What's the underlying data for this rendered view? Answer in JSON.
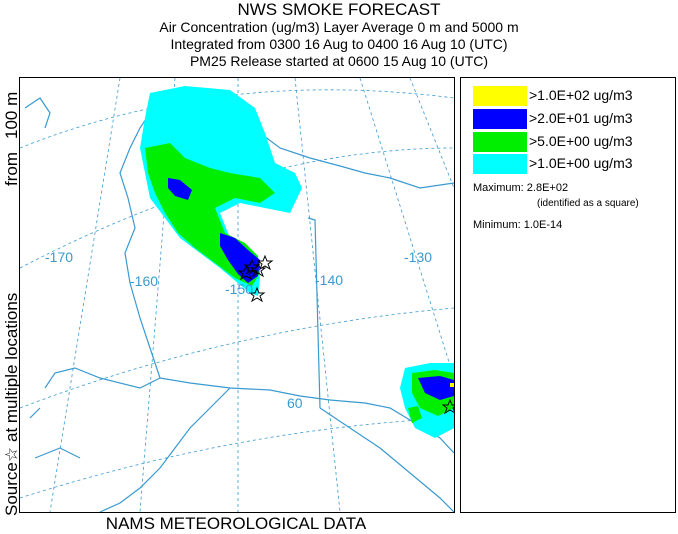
{
  "header": {
    "title": "NWS SMOKE FORECAST",
    "line2": "Air Concentration (ug/m3) Layer Average    0 m and  5000 m",
    "line3": "Integrated from 0300 16 Aug to 0400 16 Aug 10 (UTC)",
    "line4": "PM25 Release started at 0600 15 Aug 10 (UTC)"
  },
  "side_label": {
    "source": "Source☆",
    "multiple": "at multiple locations",
    "from": "from",
    "height": "100 m"
  },
  "footer": {
    "text": "NAMS METEOROLOGICAL DATA"
  },
  "map": {
    "longitude_labels": [
      "-170",
      "-160",
      "-150",
      "-140",
      "-130"
    ],
    "latitude_labels": [
      "60"
    ]
  },
  "legend": {
    "items": [
      {
        "label": ">1.0E+02 ug/m3",
        "color": "#ffff00"
      },
      {
        "label": ">2.0E+01 ug/m3",
        "color": "#0000ff"
      },
      {
        "label": ">5.0E+00 ug/m3",
        "color": "#00ee00"
      },
      {
        "label": ">1.0E+00 ug/m3",
        "color": "#00ffff"
      }
    ],
    "maximum_label": "Maximum:",
    "maximum_value": "2.8E+02",
    "maximum_note": "(identified as a square)",
    "minimum_label": "Minimum:",
    "minimum_value": "1.0E-14"
  },
  "colors": {
    "map_lines": "#3a9ad0"
  }
}
